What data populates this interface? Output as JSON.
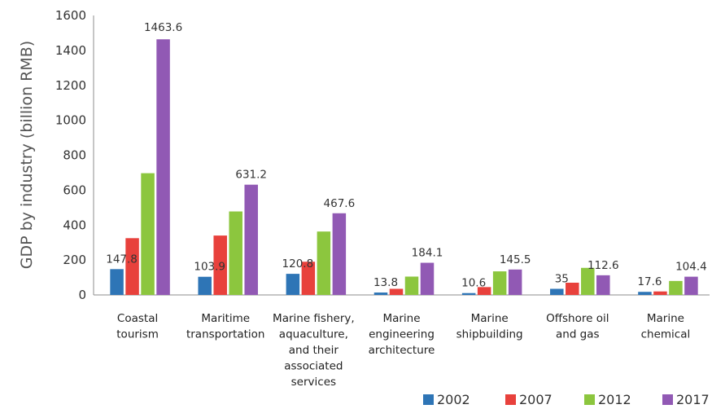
{
  "chart_data": {
    "type": "bar",
    "title": "",
    "xlabel": "",
    "ylabel": "GDP by industry (billion RMB)",
    "ylim": [
      0,
      1600
    ],
    "yticks": [
      0,
      200,
      400,
      600,
      800,
      1000,
      1200,
      1400,
      1600
    ],
    "grid": false,
    "legend_position": "bottom-right",
    "categories": [
      [
        "Coastal",
        "tourism"
      ],
      [
        "Maritime",
        "transportation"
      ],
      [
        "Marine fishery,",
        "aquaculture,",
        "and their",
        "associated",
        "services"
      ],
      [
        "Marine",
        "engineering",
        "architecture"
      ],
      [
        "Marine",
        "shipbuilding"
      ],
      [
        "Offshore oil",
        "and gas"
      ],
      [
        "Marine",
        "chemical"
      ]
    ],
    "series": [
      {
        "name": "2002",
        "color": "#2E75B6",
        "values": [
          147.8,
          103.9,
          120.8,
          13.8,
          10.6,
          35,
          17.6
        ],
        "labels": [
          "147.8",
          "103.9",
          "120.8",
          "13.8",
          "10.6",
          "35",
          "17.6"
        ]
      },
      {
        "name": "2007",
        "color": "#E8413C",
        "values": [
          325,
          340,
          190,
          35,
          45,
          70,
          20
        ],
        "labels": [
          "",
          "",
          "",
          "",
          "",
          "",
          ""
        ]
      },
      {
        "name": "2012",
        "color": "#8CC63E",
        "values": [
          697,
          478,
          363,
          105,
          135,
          155,
          80
        ],
        "labels": [
          "",
          "",
          "",
          "",
          "",
          "",
          ""
        ]
      },
      {
        "name": "2017",
        "color": "#9159B4",
        "values": [
          1463.6,
          631.2,
          467.6,
          184.1,
          145.5,
          112.6,
          104.4
        ],
        "labels": [
          "1463.6",
          "631.2",
          "467.6",
          "184.1",
          "145.5",
          "112.6",
          "104.4"
        ]
      }
    ]
  }
}
